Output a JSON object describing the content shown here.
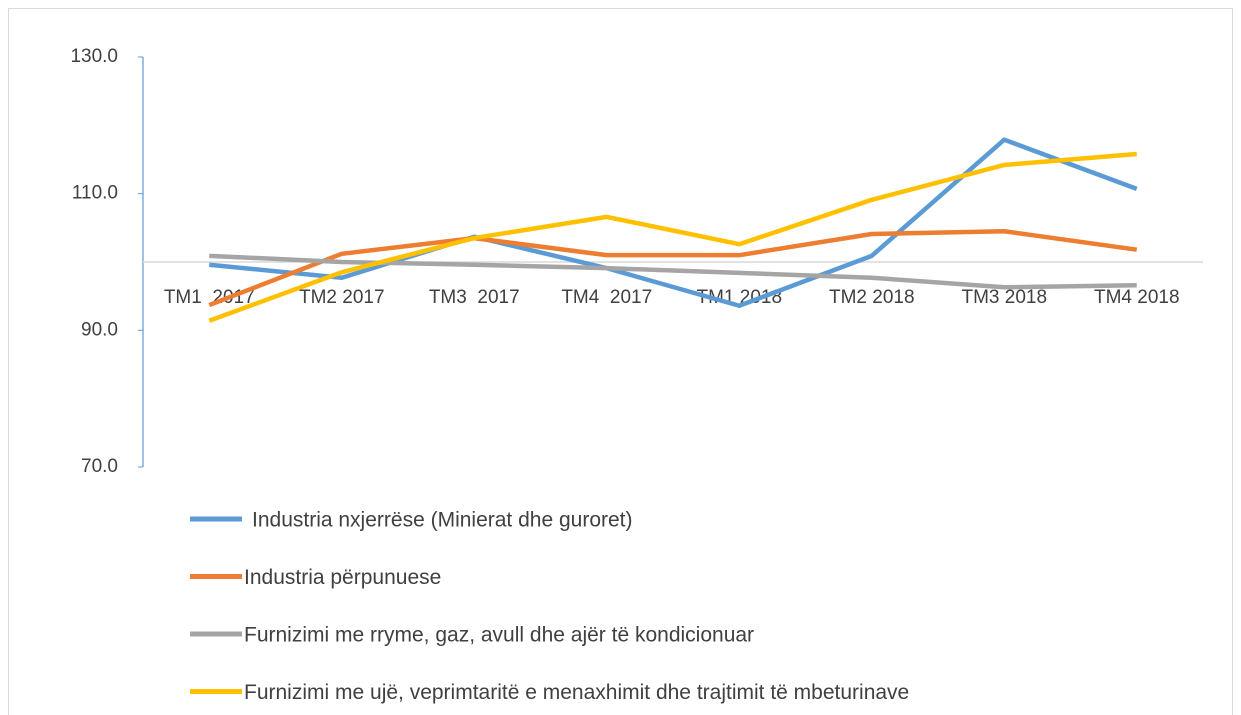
{
  "chart_data": {
    "type": "line",
    "categories": [
      "TM1  2017",
      "TM2 2017",
      "TM3  2017",
      "TM4  2017",
      "TM1 2018",
      "TM2 2018",
      "TM3 2018",
      "TM4 2018"
    ],
    "series": [
      {
        "name": "Industria nxjerrëse (Minierat dhe guroret)",
        "color": "#5b9bd5",
        "values": [
          99.6,
          97.7,
          103.7,
          99.1,
          93.6,
          100.9,
          117.9,
          110.7
        ]
      },
      {
        "name": "Industria përpunuese",
        "color": "#ed7d31",
        "values": [
          93.7,
          101.2,
          103.5,
          101.0,
          101.0,
          104.1,
          104.5,
          101.8
        ]
      },
      {
        "name": "Furnizimi me rryme, gaz, avull dhe ajër të kondicionuar",
        "color": "#a5a5a5",
        "values": [
          100.9,
          100.0,
          99.6,
          99.1,
          98.4,
          97.7,
          96.3,
          96.6
        ]
      },
      {
        "name": "Furnizimi me ujë, veprimtaritë e menaxhimit dhe trajtimit të mbeturinave",
        "color": "#ffc000",
        "values": [
          91.4,
          98.5,
          103.5,
          106.6,
          102.6,
          109.1,
          114.2,
          115.8
        ]
      }
    ],
    "ylim": [
      70,
      130
    ],
    "yticks": [
      {
        "value": 70,
        "label": "70.0"
      },
      {
        "value": 90,
        "label": "90.0"
      },
      {
        "value": 110,
        "label": "110.0"
      },
      {
        "value": 130,
        "label": "130.0"
      }
    ],
    "x_axis_crosses": 100
  }
}
